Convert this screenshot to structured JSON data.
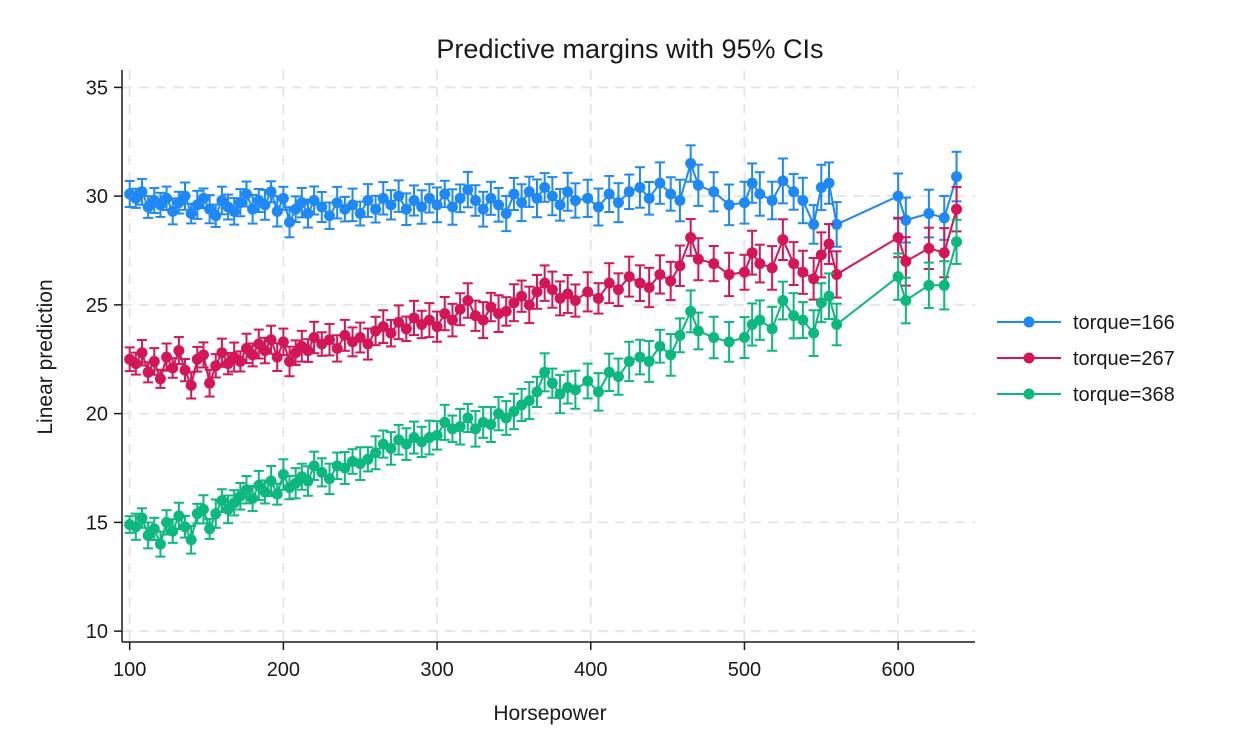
{
  "chart_data": {
    "type": "line",
    "title": "Predictive margins with 95% CIs",
    "xlabel": "Horsepower",
    "ylabel": "Linear prediction",
    "xlim": [
      95,
      650
    ],
    "ylim": [
      9.5,
      35.8
    ],
    "xticks": [
      100,
      200,
      300,
      400,
      500,
      600
    ],
    "yticks": [
      10,
      15,
      20,
      25,
      30,
      35
    ],
    "grid": true,
    "legend_position": "right",
    "x": [
      100,
      104,
      108,
      112,
      116,
      120,
      124,
      128,
      132,
      136,
      140,
      144,
      148,
      152,
      156,
      160,
      164,
      168,
      172,
      176,
      180,
      184,
      188,
      192,
      196,
      200,
      204,
      208,
      212,
      216,
      220,
      225,
      230,
      235,
      240,
      245,
      250,
      255,
      260,
      265,
      270,
      275,
      280,
      285,
      290,
      295,
      300,
      305,
      310,
      315,
      320,
      325,
      330,
      335,
      340,
      345,
      350,
      355,
      360,
      365,
      370,
      375,
      380,
      385,
      390,
      398,
      405,
      412,
      418,
      425,
      432,
      438,
      445,
      452,
      458,
      465,
      470,
      480,
      490,
      500,
      505,
      510,
      518,
      525,
      532,
      538,
      545,
      550,
      555,
      560,
      600,
      605,
      620,
      630,
      638
    ],
    "series": [
      {
        "name": "torque=166",
        "color": "#1E88F5",
        "values": [
          30.1,
          29.9,
          30.2,
          29.5,
          29.8,
          29.6,
          29.9,
          29.3,
          29.7,
          30.0,
          29.2,
          29.6,
          29.9,
          29.4,
          29.1,
          29.8,
          29.5,
          29.3,
          29.7,
          30.1,
          29.4,
          29.8,
          29.6,
          30.2,
          29.3,
          29.9,
          28.8,
          29.4,
          29.7,
          29.2,
          29.8,
          29.5,
          29.1,
          29.7,
          29.4,
          29.6,
          29.2,
          29.8,
          29.4,
          29.9,
          29.6,
          30.0,
          29.4,
          29.8,
          29.5,
          29.9,
          29.6,
          30.1,
          29.5,
          29.9,
          30.3,
          29.8,
          29.4,
          29.9,
          29.6,
          29.2,
          30.1,
          29.7,
          30.2,
          29.9,
          30.4,
          30.0,
          29.6,
          30.2,
          29.8,
          29.9,
          29.5,
          30.1,
          29.7,
          30.2,
          30.4,
          29.9,
          30.6,
          30.1,
          29.8,
          31.5,
          30.5,
          30.2,
          29.6,
          29.7,
          30.6,
          30.1,
          29.8,
          30.7,
          30.2,
          29.8,
          28.7,
          30.4,
          30.6,
          28.7,
          30.0,
          28.9,
          29.2,
          29.0,
          30.9
        ]
      },
      {
        "name": "torque=267",
        "color": "#D21659",
        "values": [
          22.5,
          22.3,
          22.8,
          21.9,
          22.4,
          21.6,
          22.6,
          22.1,
          22.9,
          22.0,
          21.3,
          22.5,
          22.7,
          21.4,
          22.2,
          22.8,
          22.3,
          22.6,
          22.4,
          23.0,
          22.7,
          23.2,
          22.9,
          23.4,
          22.6,
          23.3,
          22.4,
          22.8,
          23.1,
          22.9,
          23.5,
          23.2,
          23.4,
          23.0,
          23.6,
          23.3,
          23.5,
          23.2,
          23.8,
          24.0,
          23.7,
          24.2,
          23.9,
          24.4,
          24.1,
          24.3,
          24.0,
          24.6,
          24.3,
          24.8,
          25.2,
          24.5,
          24.3,
          24.9,
          24.6,
          24.7,
          25.1,
          25.4,
          25.0,
          25.6,
          26.0,
          25.7,
          25.3,
          25.5,
          25.2,
          25.6,
          25.3,
          26.0,
          25.7,
          26.3,
          26.0,
          25.8,
          26.4,
          26.1,
          26.8,
          28.1,
          27.1,
          26.9,
          26.4,
          26.5,
          27.4,
          26.9,
          26.7,
          28.0,
          26.9,
          26.5,
          26.2,
          27.3,
          27.8,
          26.4,
          28.1,
          27.0,
          27.6,
          27.4,
          29.4
        ]
      },
      {
        "name": "torque=368",
        "color": "#0CB780",
        "values": [
          14.9,
          14.8,
          15.2,
          14.4,
          14.7,
          14.0,
          15.0,
          14.6,
          15.3,
          14.8,
          14.2,
          15.4,
          15.6,
          14.7,
          15.4,
          16.0,
          15.6,
          15.9,
          16.2,
          16.5,
          16.1,
          16.7,
          16.4,
          16.9,
          16.3,
          17.2,
          16.6,
          16.8,
          17.1,
          16.9,
          17.6,
          17.3,
          17.0,
          17.6,
          17.5,
          17.8,
          17.7,
          17.9,
          18.2,
          18.6,
          18.4,
          18.8,
          18.6,
          18.9,
          18.7,
          18.9,
          19.0,
          19.6,
          19.3,
          19.4,
          19.8,
          19.3,
          19.6,
          19.5,
          20.0,
          19.8,
          20.1,
          20.4,
          20.6,
          21.0,
          21.9,
          21.4,
          20.9,
          21.2,
          21.1,
          21.5,
          21.0,
          21.9,
          21.7,
          22.4,
          22.6,
          22.4,
          23.1,
          22.7,
          23.6,
          24.7,
          23.8,
          23.5,
          23.3,
          23.5,
          24.1,
          24.3,
          23.9,
          25.2,
          24.5,
          24.3,
          23.7,
          25.1,
          25.4,
          24.1,
          26.3,
          25.2,
          25.9,
          25.9,
          27.9
        ]
      }
    ]
  }
}
